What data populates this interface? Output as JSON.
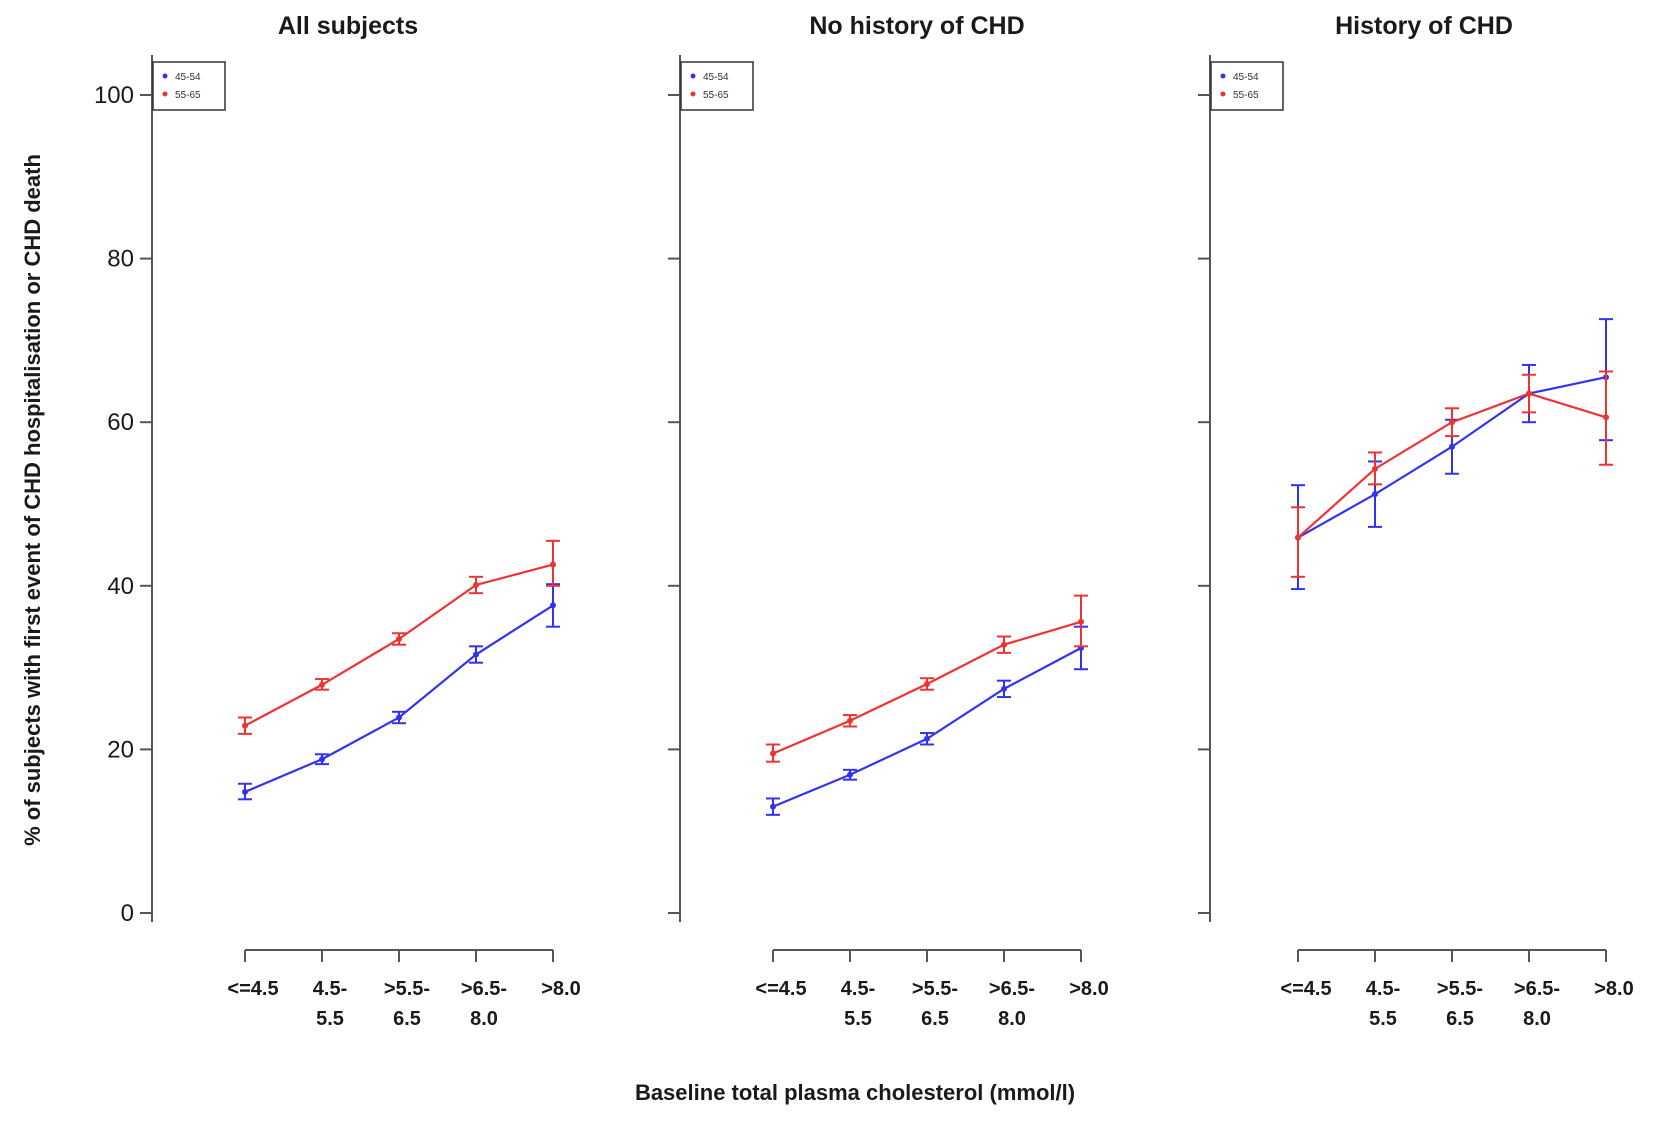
{
  "figure": {
    "xlabel": "Baseline total plasma cholesterol (mmol/l)",
    "ylabel": "% of subjects with first event of CHD hospitalisation or CHD death"
  },
  "chart_data": [
    {
      "type": "line",
      "title": "All subjects",
      "categories": [
        "<=4.5",
        "4.5-5.5",
        ">5.5-6.5",
        ">6.5-8.0",
        ">8.0"
      ],
      "category_lines": [
        [
          "<=4.5"
        ],
        [
          "4.5-",
          "5.5"
        ],
        [
          ">5.5-",
          "6.5"
        ],
        [
          ">6.5-",
          "8.0"
        ],
        [
          ">8.0"
        ]
      ],
      "yticks": [
        "0",
        "20",
        "40",
        "60",
        "80",
        "100"
      ],
      "ylim": [
        0,
        100
      ],
      "legend_position": "top-left",
      "series": [
        {
          "name": "45-54",
          "color": "#3333ee",
          "values": [
            14.8,
            18.8,
            23.9,
            31.6,
            37.6
          ],
          "err_low": [
            13.9,
            18.2,
            23.2,
            30.6,
            35.0
          ],
          "err_high": [
            15.8,
            19.4,
            24.6,
            32.6,
            40.2
          ]
        },
        {
          "name": "55-65",
          "color": "#ee3333",
          "values": [
            22.9,
            27.9,
            33.5,
            40.1,
            42.6
          ],
          "err_low": [
            21.9,
            27.3,
            32.8,
            39.1,
            40.0
          ],
          "err_high": [
            23.9,
            28.6,
            34.2,
            41.1,
            45.5
          ]
        }
      ]
    },
    {
      "type": "line",
      "title": "No history of CHD",
      "categories": [
        "<=4.5",
        "4.5-5.5",
        ">5.5-6.5",
        ">6.5-8.0",
        ">8.0"
      ],
      "category_lines": [
        [
          "<=4.5"
        ],
        [
          "4.5-",
          "5.5"
        ],
        [
          ">5.5-",
          "6.5"
        ],
        [
          ">6.5-",
          "8.0"
        ],
        [
          ">8.0"
        ]
      ],
      "ylim": [
        0,
        100
      ],
      "legend_position": "top-left",
      "series": [
        {
          "name": "45-54",
          "color": "#3333ee",
          "values": [
            13.0,
            16.9,
            21.3,
            27.4,
            32.4
          ],
          "err_low": [
            12.0,
            16.3,
            20.6,
            26.4,
            29.8
          ],
          "err_high": [
            14.0,
            17.5,
            22.0,
            28.4,
            35.0
          ]
        },
        {
          "name": "55-65",
          "color": "#ee3333",
          "values": [
            19.5,
            23.5,
            28.0,
            32.8,
            35.6
          ],
          "err_low": [
            18.5,
            22.8,
            27.3,
            31.8,
            32.6
          ],
          "err_high": [
            20.6,
            24.2,
            28.7,
            33.8,
            38.8
          ]
        }
      ]
    },
    {
      "type": "line",
      "title": "History of CHD",
      "categories": [
        "<=4.5",
        "4.5-5.5",
        ">5.5-6.5",
        ">6.5-8.0",
        ">8.0"
      ],
      "category_lines": [
        [
          "<=4.5"
        ],
        [
          "4.5-",
          "5.5"
        ],
        [
          ">5.5-",
          "6.5"
        ],
        [
          ">6.5-",
          "8.0"
        ],
        [
          ">8.0"
        ]
      ],
      "ylim": [
        0,
        100
      ],
      "legend_position": "top-left",
      "series": [
        {
          "name": "45-54",
          "color": "#3333ee",
          "values": [
            45.9,
            51.2,
            57.0,
            63.5,
            65.5
          ],
          "err_low": [
            39.6,
            47.2,
            53.7,
            60.0,
            57.8
          ],
          "err_high": [
            52.3,
            55.2,
            60.3,
            67.0,
            72.6
          ]
        },
        {
          "name": "55-65",
          "color": "#ee3333",
          "values": [
            45.9,
            54.3,
            60.0,
            63.5,
            60.6
          ],
          "err_low": [
            41.1,
            52.4,
            58.3,
            61.2,
            54.8
          ],
          "err_high": [
            49.6,
            56.3,
            61.7,
            65.8,
            66.2
          ]
        }
      ]
    }
  ]
}
